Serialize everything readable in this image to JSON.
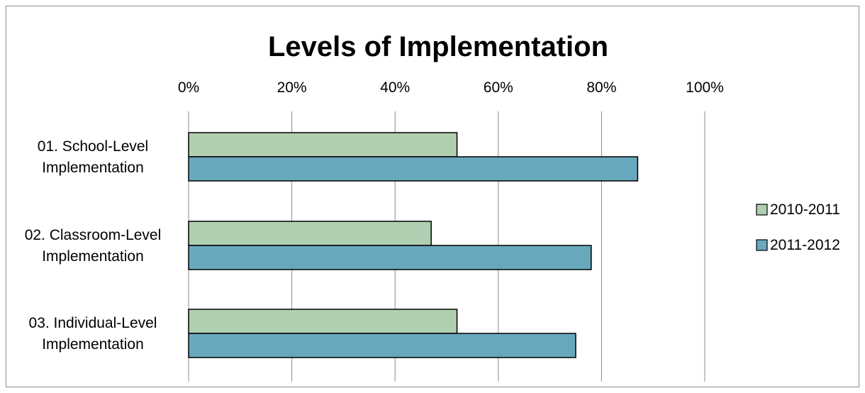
{
  "chart_data": {
    "type": "bar",
    "orientation": "horizontal",
    "title": "Levels of Implementation",
    "categories": [
      [
        "01. School-Level",
        "Implementation"
      ],
      [
        "02. Classroom-Level",
        "Implementation"
      ],
      [
        "03. Individual-Level",
        "Implementation"
      ]
    ],
    "x_ticks": [
      "0%",
      "20%",
      "40%",
      "60%",
      "80%",
      "100%"
    ],
    "xlim": [
      0,
      100
    ],
    "grid": "vertical",
    "legend": "right",
    "series": [
      {
        "name": "2010-2011",
        "color": "#b0cfb0",
        "values": [
          52,
          47,
          52
        ]
      },
      {
        "name": "2011-2012",
        "color": "#68a8bd",
        "values": [
          87,
          78,
          75
        ]
      }
    ]
  }
}
